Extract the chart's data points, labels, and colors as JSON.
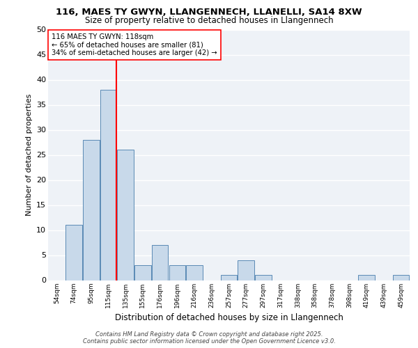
{
  "title1": "116, MAES TY GWYN, LLANGENNECH, LLANELLI, SA14 8XW",
  "title2": "Size of property relative to detached houses in Llangennech",
  "xlabel": "Distribution of detached houses by size in Llangennech",
  "ylabel": "Number of detached properties",
  "categories": [
    "54sqm",
    "74sqm",
    "95sqm",
    "115sqm",
    "135sqm",
    "155sqm",
    "176sqm",
    "196sqm",
    "216sqm",
    "236sqm",
    "257sqm",
    "277sqm",
    "297sqm",
    "317sqm",
    "338sqm",
    "358sqm",
    "378sqm",
    "398sqm",
    "419sqm",
    "439sqm",
    "459sqm"
  ],
  "values": [
    0,
    11,
    28,
    38,
    26,
    3,
    7,
    3,
    3,
    0,
    1,
    4,
    1,
    0,
    0,
    0,
    0,
    0,
    1,
    0,
    1
  ],
  "bar_color": "#c8d9ea",
  "bar_edge_color": "#5a8ab5",
  "vline_color": "red",
  "annotation_text": "116 MAES TY GWYN: 118sqm\n← 65% of detached houses are smaller (81)\n34% of semi-detached houses are larger (42) →",
  "footer_text": "Contains HM Land Registry data © Crown copyright and database right 2025.\nContains public sector information licensed under the Open Government Licence v3.0.",
  "ylim": [
    0,
    50
  ],
  "yticks": [
    0,
    5,
    10,
    15,
    20,
    25,
    30,
    35,
    40,
    45,
    50
  ],
  "background_color": "#eef2f7"
}
